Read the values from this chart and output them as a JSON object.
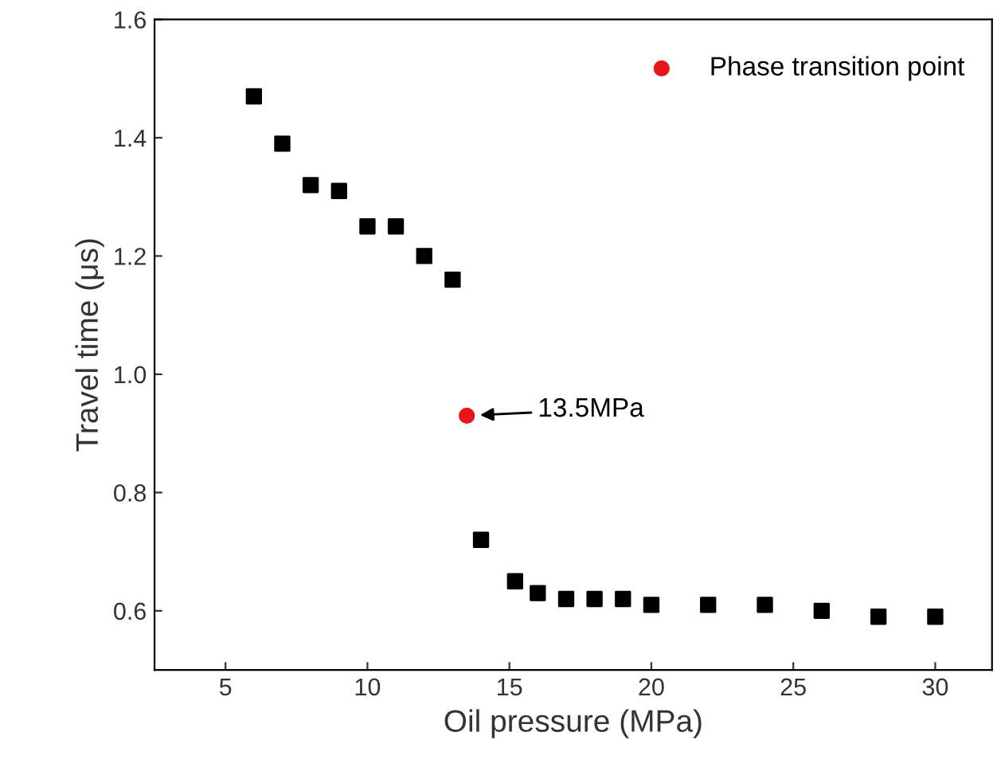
{
  "chart_data": {
    "type": "scatter",
    "xlabel": "Oil pressure (MPa)",
    "ylabel": "Travel time (μs)",
    "xlim": [
      2.5,
      32
    ],
    "ylim": [
      0.5,
      1.6
    ],
    "xticks": [
      5,
      10,
      15,
      20,
      25,
      30
    ],
    "yticks": [
      0.6,
      0.8,
      {
        "value": 1.0,
        "label": "1.0"
      },
      1.2,
      1.4,
      1.6
    ],
    "grid": false,
    "legend": "top right",
    "series": [
      {
        "color": "#000000",
        "marker": "square",
        "x": [
          6,
          7,
          8,
          9,
          10,
          11,
          12,
          13,
          14,
          15.2,
          16,
          17,
          18,
          19,
          20,
          22,
          24,
          26,
          28,
          30
        ],
        "values": [
          1.47,
          1.39,
          1.32,
          1.31,
          1.25,
          1.25,
          1.2,
          1.16,
          0.72,
          0.65,
          0.63,
          0.62,
          0.62,
          0.62,
          0.61,
          0.61,
          0.61,
          0.6,
          0.59,
          0.59
        ]
      },
      {
        "name": "Phase transition point",
        "color": "#e8161b",
        "marker": "circle",
        "x": [
          13.5
        ],
        "values": [
          0.93
        ]
      }
    ],
    "annotations": [
      {
        "text": "13.5MPa",
        "x": 13.5,
        "y": 0.93
      }
    ]
  }
}
